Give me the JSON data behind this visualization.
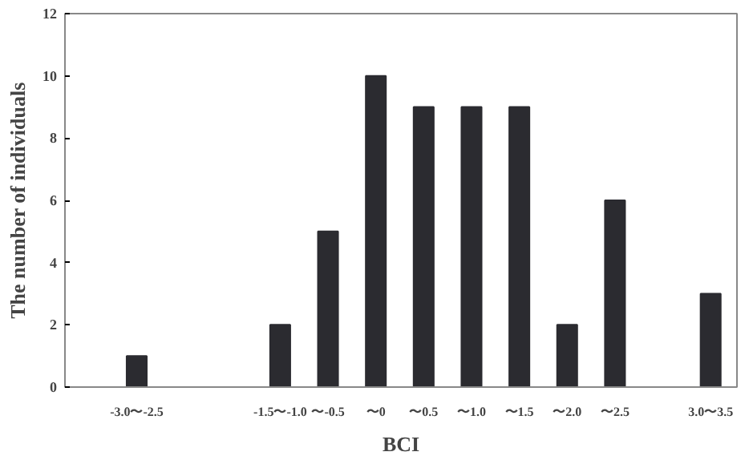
{
  "chart_data": {
    "type": "bar",
    "xlabel": "BCI",
    "ylabel": "The number of individuals",
    "categories": [
      "-3.0〜-2.5",
      null,
      null,
      "-1.5〜-1.0",
      "〜-0.5",
      "〜0",
      "〜0.5",
      "〜1.0",
      "〜1.5",
      "〜2.0",
      "〜2.5",
      null,
      "3.0〜3.5"
    ],
    "values": [
      1,
      0,
      0,
      2,
      5,
      10,
      9,
      9,
      9,
      2,
      6,
      0,
      3
    ],
    "color": "#2b2b30",
    "ylim": [
      0,
      12
    ],
    "yticks": [
      0,
      2,
      4,
      6,
      8,
      10,
      12
    ],
    "grid": false
  }
}
